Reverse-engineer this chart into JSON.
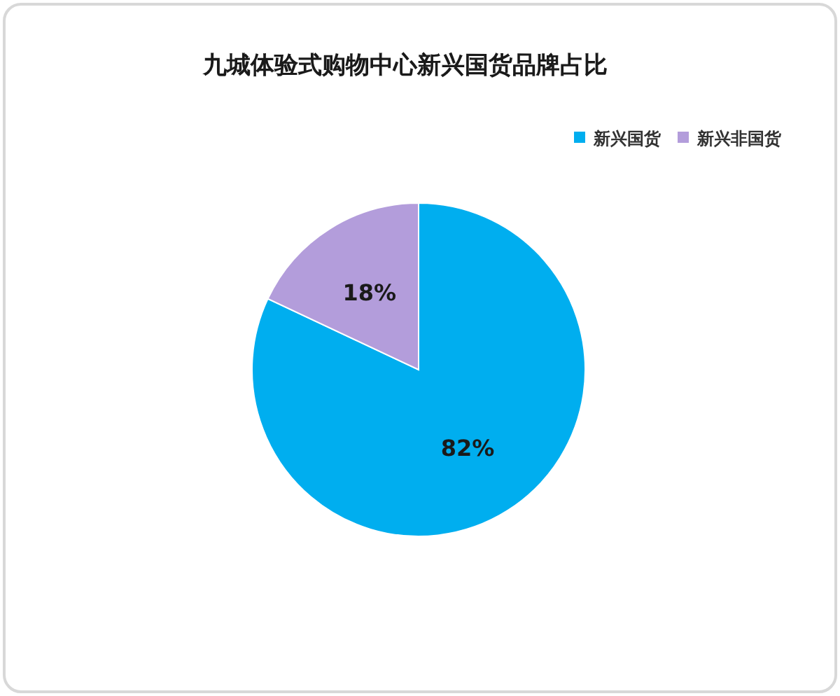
{
  "chart_data": {
    "type": "pie",
    "title": "九城体验式购物中心新兴国货品牌占比",
    "categories": [
      "新兴国货",
      "新兴非国货"
    ],
    "values": [
      82,
      18
    ],
    "colors": [
      "#00aeef",
      "#b39ddb"
    ],
    "value_labels": [
      "82%",
      "18%"
    ],
    "legend": "top right"
  }
}
